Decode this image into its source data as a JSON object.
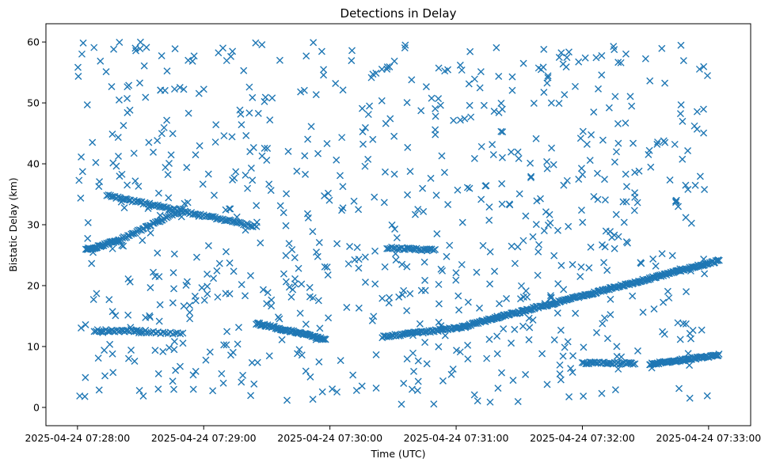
{
  "chart_data": {
    "type": "scatter",
    "title": "Detections in Delay",
    "xlabel": "Time (UTC)",
    "ylabel": "Bistatic Delay (km)",
    "marker": "x",
    "color": "#1f77b4",
    "grid": false,
    "x_start": "2025-04-24 07:28:00",
    "x_end": "2025-04-24 07:33:00",
    "xlim": [
      "2025-04-24 07:27:45",
      "2025-04-24 07:33:20"
    ],
    "ylim": [
      -3,
      63
    ],
    "x_ticks": [
      "2025-04-24 07:28:00",
      "2025-04-24 07:29:00",
      "2025-04-24 07:30:00",
      "2025-04-24 07:31:00",
      "2025-04-24 07:32:00",
      "2025-04-24 07:33:00"
    ],
    "y_ticks": [
      "0",
      "10",
      "20",
      "30",
      "40",
      "50",
      "60"
    ],
    "tracks": [
      {
        "from": "2025-04-24 07:28:04",
        "to": "2025-04-24 07:28:20",
        "delay_start": 25.8,
        "delay_end": 27.5,
        "count": 40
      },
      {
        "from": "2025-04-24 07:28:20",
        "to": "2025-04-24 07:28:50",
        "delay_start": 27.5,
        "delay_end": 32.5,
        "count": 45
      },
      {
        "from": "2025-04-24 07:28:14",
        "to": "2025-04-24 07:29:25",
        "delay_start": 34.8,
        "delay_end": 29.7,
        "count": 95
      },
      {
        "from": "2025-04-24 07:28:08",
        "to": "2025-04-24 07:28:30",
        "delay_start": 12.6,
        "delay_end": 12.6,
        "count": 30
      },
      {
        "from": "2025-04-24 07:28:28",
        "to": "2025-04-24 07:28:50",
        "delay_start": 12.4,
        "delay_end": 12.1,
        "count": 20
      },
      {
        "from": "2025-04-24 07:29:25",
        "to": "2025-04-24 07:29:58",
        "delay_start": 13.8,
        "delay_end": 11.2,
        "count": 70
      },
      {
        "from": "2025-04-24 07:30:25",
        "to": "2025-04-24 07:31:00",
        "delay_start": 11.6,
        "delay_end": 13.0,
        "count": 55
      },
      {
        "from": "2025-04-24 07:31:00",
        "to": "2025-04-24 07:33:05",
        "delay_start": 13.0,
        "delay_end": 24.1,
        "count": 250
      },
      {
        "from": "2025-04-24 07:30:27",
        "to": "2025-04-24 07:30:50",
        "delay_start": 26.2,
        "delay_end": 25.8,
        "count": 30
      },
      {
        "from": "2025-04-24 07:32:00",
        "to": "2025-04-24 07:32:25",
        "delay_start": 7.3,
        "delay_end": 7.2,
        "count": 35
      },
      {
        "from": "2025-04-24 07:32:32",
        "to": "2025-04-24 07:33:05",
        "delay_start": 7.1,
        "delay_end": 8.6,
        "count": 70
      }
    ],
    "scattered_detections": {
      "count": 780,
      "delay_range": [
        0.5,
        60
      ]
    }
  }
}
